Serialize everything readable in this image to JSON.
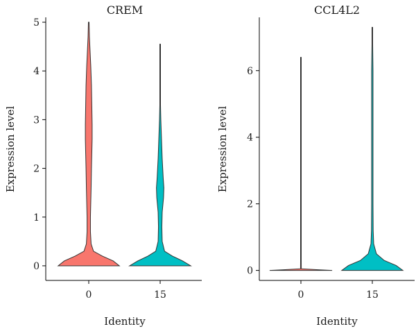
{
  "chart_data": [
    {
      "type": "violin",
      "title": "CREM",
      "xlabel": "Identity",
      "ylabel": "Expression level",
      "categories": [
        "0",
        "15"
      ],
      "ylim": [
        -0.3,
        5.1
      ],
      "yticks": [
        0,
        1,
        2,
        3,
        4,
        5
      ],
      "series": [
        {
          "category": "0",
          "color": "#F8766D",
          "min": 0,
          "max": 5.0,
          "density": [
            [
              0.0,
              0.9
            ],
            [
              0.1,
              0.72
            ],
            [
              0.2,
              0.4
            ],
            [
              0.3,
              0.14
            ],
            [
              0.45,
              0.07
            ],
            [
              0.7,
              0.05
            ],
            [
              1.0,
              0.05
            ],
            [
              1.3,
              0.06
            ],
            [
              1.6,
              0.07
            ],
            [
              2.0,
              0.08
            ],
            [
              2.3,
              0.09
            ],
            [
              2.6,
              0.1
            ],
            [
              2.9,
              0.1
            ],
            [
              3.3,
              0.09
            ],
            [
              3.7,
              0.08
            ],
            [
              4.1,
              0.06
            ],
            [
              4.4,
              0.04
            ],
            [
              4.7,
              0.02
            ],
            [
              5.0,
              0.0
            ]
          ]
        },
        {
          "category": "15",
          "color": "#00BFC4",
          "min": 0,
          "max": 4.55,
          "density": [
            [
              0.0,
              0.9
            ],
            [
              0.1,
              0.66
            ],
            [
              0.2,
              0.36
            ],
            [
              0.3,
              0.13
            ],
            [
              0.5,
              0.06
            ],
            [
              0.8,
              0.05
            ],
            [
              1.1,
              0.06
            ],
            [
              1.4,
              0.1
            ],
            [
              1.6,
              0.11
            ],
            [
              1.8,
              0.09
            ],
            [
              2.2,
              0.06
            ],
            [
              2.6,
              0.04
            ],
            [
              3.0,
              0.02
            ],
            [
              3.3,
              0.01
            ],
            [
              3.8,
              0.005
            ],
            [
              4.55,
              0.0
            ]
          ]
        }
      ]
    },
    {
      "type": "violin",
      "title": "CCL4L2",
      "xlabel": "Identity",
      "ylabel": "Expression level",
      "categories": [
        "0",
        "15"
      ],
      "ylim": [
        -0.3,
        7.6
      ],
      "yticks": [
        0,
        2,
        4,
        6
      ],
      "series": [
        {
          "category": "0",
          "color": "#F8766D",
          "min": 0,
          "max": 6.4,
          "density": [
            [
              0.0,
              0.92
            ],
            [
              0.02,
              0.5
            ],
            [
              0.05,
              0.012
            ],
            [
              0.3,
              0.006
            ],
            [
              3.0,
              0.005
            ],
            [
              6.3,
              0.004
            ],
            [
              6.4,
              0.0
            ]
          ]
        },
        {
          "category": "15",
          "color": "#00BFC4",
          "min": 0,
          "max": 7.3,
          "density": [
            [
              0.0,
              0.9
            ],
            [
              0.15,
              0.7
            ],
            [
              0.3,
              0.35
            ],
            [
              0.5,
              0.12
            ],
            [
              0.8,
              0.04
            ],
            [
              1.2,
              0.025
            ],
            [
              2.0,
              0.02
            ],
            [
              3.0,
              0.02
            ],
            [
              4.0,
              0.02
            ],
            [
              5.0,
              0.02
            ],
            [
              6.0,
              0.02
            ],
            [
              6.4,
              0.015
            ],
            [
              6.8,
              0.008
            ],
            [
              7.3,
              0.0
            ]
          ]
        }
      ]
    }
  ]
}
